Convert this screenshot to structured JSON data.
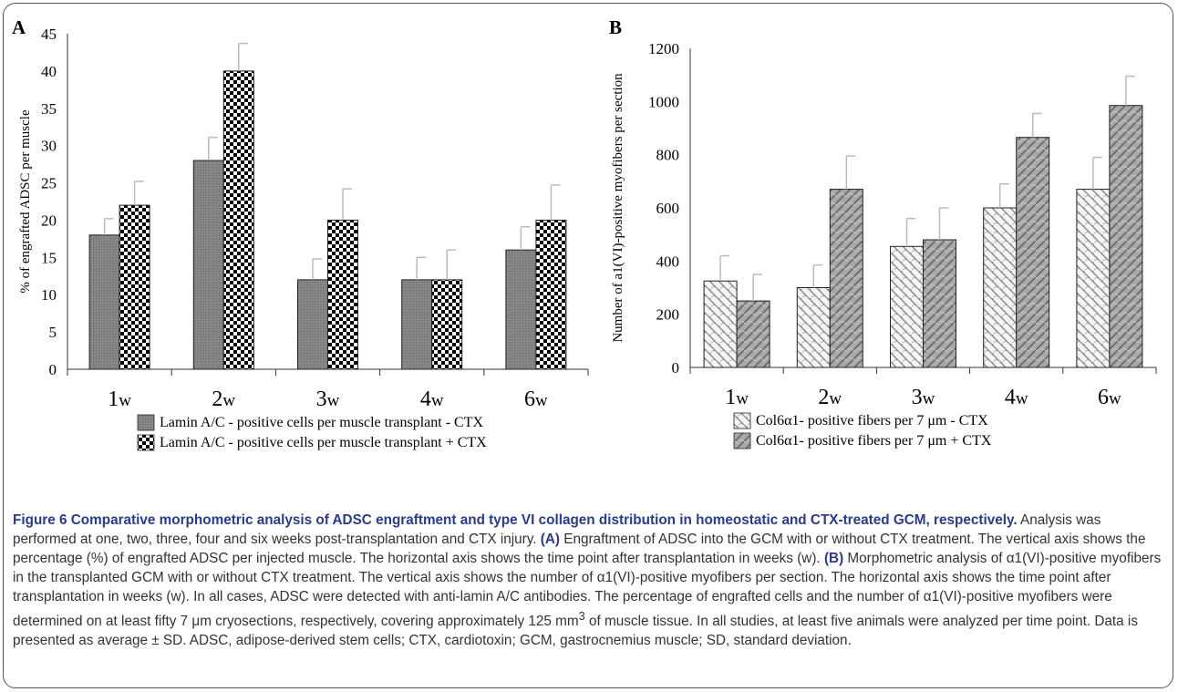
{
  "figure": {
    "panel_a_letter": "A",
    "panel_b_letter": "B",
    "caption": {
      "title": "Figure 6 Comparative morphometric analysis of ADSC engraftment and type VI collagen distribution in homeostatic and CTX-treated GCM, respectively.",
      "p1": " Analysis was performed at one, two, three, four and six weeks post-transplantation and CTX injury. ",
      "label_a": "(A)",
      "p2": " Engraftment of ADSC into the GCM with or without CTX treatment. The vertical axis shows the percentage (%) of engrafted ADSC per injected muscle. The horizontal axis shows the time point after transplantation in weeks (w). ",
      "label_b": "(B)",
      "p3": " Morphometric analysis of α1(VI)-positive myofibers in the transplanted GCM with or without CTX treatment. The vertical axis shows the number of α1(VI)-positive myofibers per section. The horizontal axis shows the time point after transplantation in weeks (w). In all cases, ADSC were detected with anti-lamin A/C antibodies. The percentage of engrafted cells and the number of α1(VI)-positive myofibers were determined on at least fifty 7 μm cryosections, respectively, covering approximately 125 mm",
      "sup": "3",
      "p4": " of muscle tissue. In all studies, at least five animals were analyzed per time point. Data is presented as average ± SD. ADSC, adipose-derived stem cells; CTX, cardiotoxin; GCM, gastrocnemius muscle; SD, standard deviation."
    }
  },
  "chart_data": [
    {
      "type": "bar",
      "panel": "A",
      "title": "",
      "ylabel": "% of engrafted ADSC per muscle",
      "xlabel": "",
      "categories": [
        "1w",
        "2w",
        "3w",
        "4w",
        "6w"
      ],
      "ylim": [
        0,
        45
      ],
      "yticks": [
        0,
        5,
        10,
        15,
        20,
        25,
        30,
        35,
        40,
        45
      ],
      "series": [
        {
          "name": "Lamin A/C - positive cells per muscle transplant  - CTX",
          "values": [
            18,
            28,
            12,
            12,
            16
          ],
          "errors": [
            2.2,
            3.1,
            2.8,
            3.0,
            3.1
          ]
        },
        {
          "name": "Lamin A/C - positive cells per muscle transplant + CTX",
          "values": [
            22,
            40,
            20,
            12,
            20
          ],
          "errors": [
            3.2,
            3.7,
            4.2,
            4.0,
            4.7
          ]
        }
      ],
      "legend": "bottom"
    },
    {
      "type": "bar",
      "panel": "B",
      "title": "",
      "ylabel": "Number  of a1(VI)-positive myofibers per section",
      "xlabel": "",
      "categories": [
        "1w",
        "2w",
        "3w",
        "4w",
        "6w"
      ],
      "ylim": [
        0,
        1200
      ],
      "yticks": [
        0,
        200,
        400,
        600,
        800,
        1000,
        1200
      ],
      "series": [
        {
          "name": "Col6α1- positive fibers per 7 μm  - CTX",
          "values": [
            325,
            300,
            455,
            600,
            670
          ],
          "errors": [
            95,
            85,
            105,
            90,
            120
          ]
        },
        {
          "name": "Col6α1- positive fibers per 7 μm + CTX",
          "values": [
            250,
            670,
            480,
            865,
            985
          ],
          "errors": [
            100,
            125,
            120,
            90,
            110
          ]
        }
      ],
      "legend": "bottom"
    }
  ]
}
